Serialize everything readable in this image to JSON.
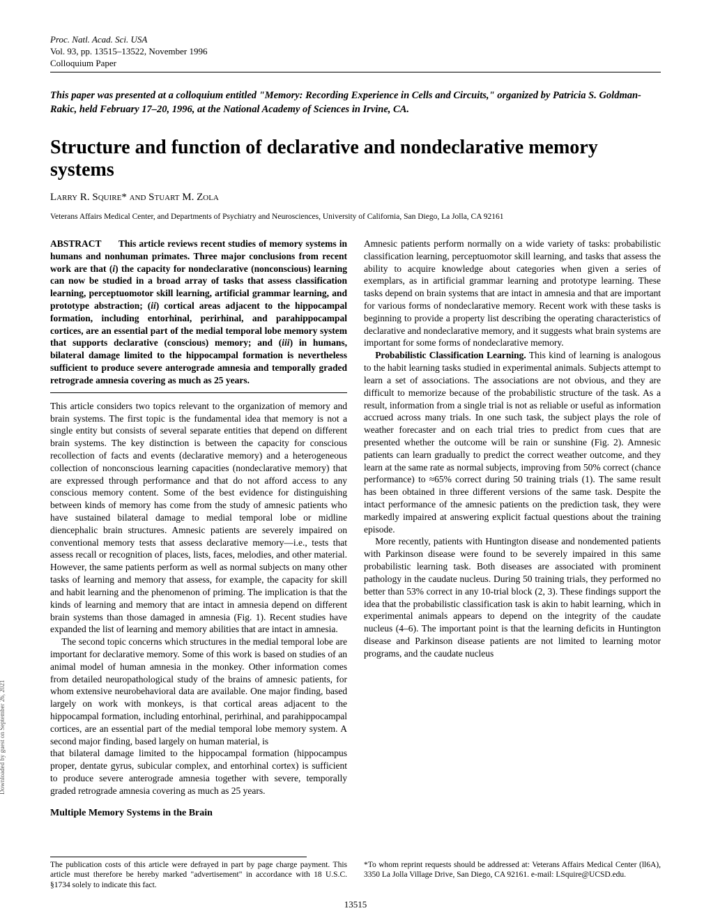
{
  "header": {
    "journal": "Proc. Natl. Acad. Sci. USA",
    "vol_line": "Vol. 93, pp. 13515–13522, November 1996",
    "section": "Colloquium Paper"
  },
  "colloquium_note": "This paper was presented at a colloquium entitled \"Memory: Recording Experience in Cells and Circuits,\" organized by Patricia S. Goldman-Rakic, held February 17–20, 1996, at the National Academy of Sciences in Irvine, CA.",
  "title": "Structure and function of declarative and nondeclarative memory systems",
  "authors": "Larry R. Squire* and Stuart M. Zola",
  "affiliation": "Veterans Affairs Medical Center, and Departments of Psychiatry and Neurosciences, University of California, San Diego, La Jolla, CA 92161",
  "abstract": {
    "lead": "ABSTRACT",
    "body_pre": "This article reviews recent studies of memory systems in humans and nonhuman primates. Three major conclusions from recent work are that (",
    "i1": "i",
    "body_mid1": ") the capacity for nondeclarative (nonconscious) learning can now be studied in a broad array of tasks that assess classification learning, perceptuomotor skill learning, artificial grammar learning, and prototype abstraction; (",
    "i2": "ii",
    "body_mid2": ") cortical areas adjacent to the hippocampal formation, including entorhinal, perirhinal, and parahippocampal cortices, are an essential part of the medial temporal lobe memory system that supports declarative (conscious) memory; and (",
    "i3": "iii",
    "body_post": ") in humans, bilateral damage limited to the hippocampal formation is nevertheless sufficient to produce severe anterograde amnesia and temporally graded retrograde amnesia covering as much as 25 years."
  },
  "body": {
    "p1": "This article considers two topics relevant to the organization of memory and brain systems. The first topic is the fundamental idea that memory is not a single entity but consists of several separate entities that depend on different brain systems. The key distinction is between the capacity for conscious recollection of facts and events (declarative memory) and a heterogeneous collection of nonconscious learning capacities (nondeclarative memory) that are expressed through performance and that do not afford access to any conscious memory content. Some of the best evidence for distinguishing between kinds of memory has come from the study of amnesic patients who have sustained bilateral damage to medial temporal lobe or midline diencephalic brain structures. Amnesic patients are severely impaired on conventional memory tests that assess declarative memory—i.e., tests that assess recall or recognition of places, lists, faces, melodies, and other material. However, the same patients perform as well as normal subjects on many other tasks of learning and memory that assess, for example, the capacity for skill and habit learning and the phenomenon of priming. The implication is that the kinds of learning and memory that are intact in amnesia depend on different brain systems than those damaged in amnesia (Fig. 1). Recent studies have expanded the list of learning and memory abilities that are intact in amnesia.",
    "p2": "The second topic concerns which structures in the medial temporal lobe are important for declarative memory. Some of this work is based on studies of an animal model of human amnesia in the monkey. Other information comes from detailed neuropathological study of the brains of amnesic patients, for whom extensive neurobehavioral data are available. One major finding, based largely on work with monkeys, is that cortical areas adjacent to the hippocampal formation, including entorhinal, perirhinal, and parahippocampal cortices, are an essential part of the medial temporal lobe memory system. A second major finding, based largely on human material, is",
    "p3": "that bilateral damage limited to the hippocampal formation (hippocampus proper, dentate gyrus, subicular complex, and entorhinal cortex) is sufficient to produce severe anterograde amnesia together with severe, temporally graded retrograde amnesia covering as much as 25 years.",
    "h1": "Multiple Memory Systems in the Brain",
    "p4": "Amnesic patients perform normally on a wide variety of tasks: probabilistic classification learning, perceptuomotor skill learning, and tasks that assess the ability to acquire knowledge about categories when given a series of exemplars, as in artificial grammar learning and prototype learning. These tasks depend on brain systems that are intact in amnesia and that are important for various forms of nondeclarative memory. Recent work with these tasks is beginning to provide a property list describing the operating characteristics of declarative and nondeclarative memory, and it suggests what brain systems are important for some forms of nondeclarative memory.",
    "p5_lead": "Probabilistic Classification Learning.",
    "p5": " This kind of learning is analogous to the habit learning tasks studied in experimental animals. Subjects attempt to learn a set of associations. The associations are not obvious, and they are difficult to memorize because of the probabilistic structure of the task. As a result, information from a single trial is not as reliable or useful as information accrued across many trials. In one such task, the subject plays the role of weather forecaster and on each trial tries to predict from cues that are presented whether the outcome will be rain or sunshine (Fig. 2). Amnesic patients can learn gradually to predict the correct weather outcome, and they learn at the same rate as normal subjects, improving from 50% correct (chance performance) to ≈65% correct during 50 training trials (1). The same result has been obtained in three different versions of the same task. Despite the intact performance of the amnesic patients on the prediction task, they were markedly impaired at answering explicit factual questions about the training episode.",
    "p6": "More recently, patients with Huntington disease and nondemented patients with Parkinson disease were found to be severely impaired in this same probabilistic learning task. Both diseases are associated with prominent pathology in the caudate nucleus. During 50 training trials, they performed no better than 53% correct in any 10-trial block (2, 3). These findings support the idea that the probabilistic classification task is akin to habit learning, which in experimental animals appears to depend on the integrity of the caudate nucleus (4–6). The important point is that the learning deficits in Huntington disease and Parkinson disease patients are not limited to learning motor programs, and the caudate nucleus"
  },
  "footer": {
    "left": "The publication costs of this article were defrayed in part by page charge payment. This article must therefore be hereby marked \"advertisement\" in accordance with 18 U.S.C. §1734 solely to indicate this fact.",
    "right": "*To whom reprint requests should be addressed at: Veterans Affairs Medical Center (ll6A), 3350 La Jolla Village Drive, San Diego, CA 92161. e-mail: LSquire@UCSD.edu."
  },
  "page_number": "13515",
  "side_text": "Downloaded by guest on September 26, 2021"
}
